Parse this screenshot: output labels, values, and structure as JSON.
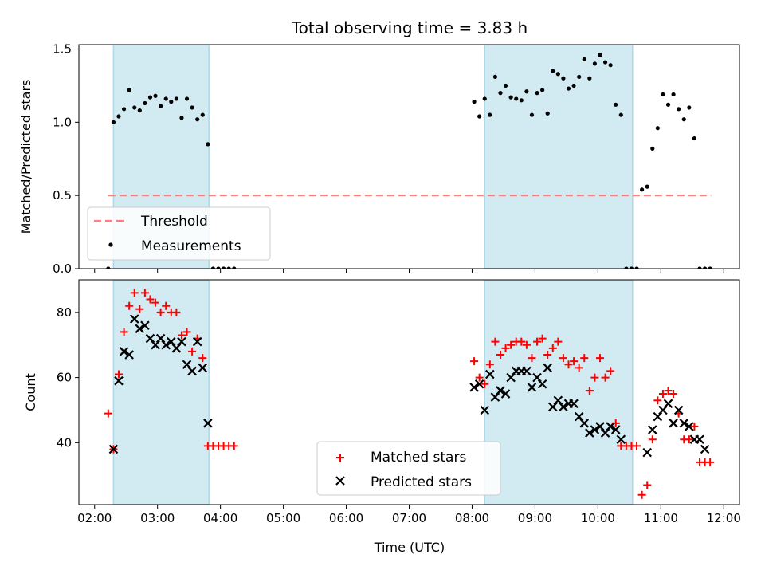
{
  "figure": {
    "title": "Total observing time = 3.83 h",
    "xlabel": "Time (UTC)",
    "x_ticks": [
      "02:00",
      "03:00",
      "04:00",
      "05:00",
      "06:00",
      "07:00",
      "08:00",
      "09:00",
      "10:00",
      "11:00",
      "12:00"
    ]
  },
  "colors": {
    "shade": "#add8e6",
    "threshold": "#ff7f7f",
    "matched": "#ff0000",
    "predicted": "#000000",
    "measurement": "#000000"
  },
  "chart_data": [
    {
      "type": "scatter",
      "ylabel": "Matched/Predicted stars",
      "y_ticks": [
        "0.0",
        "0.5",
        "1.0",
        "1.5"
      ],
      "xlim": [
        "01:45",
        "12:15"
      ],
      "ylim": [
        0,
        1.53
      ],
      "shaded_ranges": [
        [
          "02:18",
          "03:49"
        ],
        [
          "08:12",
          "10:33"
        ]
      ],
      "threshold": {
        "label": "Threshold",
        "y": 0.5,
        "x_range": [
          "02:13",
          "11:48"
        ]
      },
      "legend": {
        "position": "lower-left",
        "entries": [
          "Threshold",
          "Measurements"
        ]
      },
      "series": [
        {
          "name": "Measurements",
          "x": [
            "02:13",
            "02:18",
            "02:23",
            "02:28",
            "02:33",
            "02:38",
            "02:43",
            "02:48",
            "02:53",
            "02:58",
            "03:03",
            "03:08",
            "03:13",
            "03:18",
            "03:23",
            "03:28",
            "03:33",
            "03:38",
            "03:43",
            "03:48",
            "03:53",
            "03:58",
            "04:03",
            "04:08",
            "04:13",
            "08:02",
            "08:07",
            "08:12",
            "08:17",
            "08:22",
            "08:27",
            "08:32",
            "08:37",
            "08:42",
            "08:47",
            "08:52",
            "08:57",
            "09:02",
            "09:07",
            "09:12",
            "09:17",
            "09:22",
            "09:27",
            "09:32",
            "09:37",
            "09:42",
            "09:47",
            "09:52",
            "09:57",
            "10:02",
            "10:07",
            "10:12",
            "10:17",
            "10:22",
            "10:27",
            "10:32",
            "10:37",
            "10:42",
            "10:47",
            "10:52",
            "10:57",
            "11:02",
            "11:07",
            "11:12",
            "11:17",
            "11:22",
            "11:27",
            "11:32",
            "11:37",
            "11:42",
            "11:47"
          ],
          "y": [
            0.0,
            1.0,
            1.04,
            1.09,
            1.22,
            1.1,
            1.08,
            1.13,
            1.17,
            1.18,
            1.11,
            1.16,
            1.14,
            1.16,
            1.03,
            1.16,
            1.1,
            1.02,
            1.05,
            0.85,
            0.0,
            0.0,
            0.0,
            0.0,
            0.0,
            1.14,
            1.04,
            1.16,
            1.05,
            1.31,
            1.2,
            1.25,
            1.17,
            1.16,
            1.15,
            1.21,
            1.05,
            1.2,
            1.22,
            1.06,
            1.35,
            1.33,
            1.3,
            1.23,
            1.25,
            1.31,
            1.43,
            1.3,
            1.4,
            1.46,
            1.41,
            1.39,
            1.12,
            1.05,
            0.0,
            0.0,
            0.0,
            0.54,
            0.56,
            0.82,
            0.96,
            1.19,
            1.12,
            1.19,
            1.09,
            1.02,
            1.1,
            0.89,
            0.0,
            0.0,
            0.0
          ]
        }
      ]
    },
    {
      "type": "scatter",
      "ylabel": "Count",
      "y_ticks": [
        "40",
        "60",
        "80"
      ],
      "xlim": [
        "01:45",
        "12:15"
      ],
      "ylim": [
        21,
        90
      ],
      "shaded_ranges": [
        [
          "02:18",
          "03:49"
        ],
        [
          "08:12",
          "10:33"
        ]
      ],
      "legend": {
        "position": "lower-center",
        "entries": [
          "Matched stars",
          "Predicted stars"
        ]
      },
      "series": [
        {
          "name": "Matched stars",
          "marker": "plus",
          "x": [
            "02:13",
            "02:18",
            "02:23",
            "02:28",
            "02:33",
            "02:38",
            "02:43",
            "02:48",
            "02:53",
            "02:58",
            "03:03",
            "03:08",
            "03:13",
            "03:18",
            "03:23",
            "03:28",
            "03:33",
            "03:38",
            "03:43",
            "03:48",
            "03:53",
            "03:58",
            "04:03",
            "04:08",
            "04:13",
            "08:02",
            "08:07",
            "08:12",
            "08:17",
            "08:22",
            "08:27",
            "08:32",
            "08:37",
            "08:42",
            "08:47",
            "08:52",
            "08:57",
            "09:02",
            "09:07",
            "09:12",
            "09:17",
            "09:22",
            "09:27",
            "09:32",
            "09:37",
            "09:42",
            "09:47",
            "09:52",
            "09:57",
            "10:02",
            "10:07",
            "10:12",
            "10:17",
            "10:22",
            "10:27",
            "10:32",
            "10:37",
            "10:42",
            "10:47",
            "10:52",
            "10:57",
            "11:02",
            "11:07",
            "11:12",
            "11:17",
            "11:22",
            "11:27",
            "11:32",
            "11:37",
            "11:42",
            "11:47"
          ],
          "y": [
            49,
            38,
            61,
            74,
            82,
            86,
            81,
            86,
            84,
            83,
            80,
            82,
            80,
            80,
            73,
            74,
            68,
            72,
            66,
            39,
            39,
            39,
            39,
            39,
            39,
            65,
            60,
            58,
            64,
            71,
            67,
            69,
            70,
            71,
            71,
            70,
            66,
            71,
            72,
            67,
            69,
            71,
            66,
            64,
            65,
            63,
            66,
            56,
            60,
            66,
            60,
            62,
            46,
            39,
            39,
            39,
            39,
            24,
            27,
            41,
            53,
            55,
            56,
            55,
            49,
            41,
            41,
            45,
            34,
            34,
            34
          ]
        },
        {
          "name": "Predicted stars",
          "marker": "x",
          "x": [
            "02:18",
            "02:23",
            "02:28",
            "02:33",
            "02:38",
            "02:43",
            "02:48",
            "02:53",
            "02:58",
            "03:03",
            "03:08",
            "03:13",
            "03:18",
            "03:23",
            "03:28",
            "03:33",
            "03:38",
            "03:43",
            "03:48",
            "08:02",
            "08:07",
            "08:12",
            "08:17",
            "08:22",
            "08:27",
            "08:32",
            "08:37",
            "08:42",
            "08:47",
            "08:52",
            "08:57",
            "09:02",
            "09:07",
            "09:12",
            "09:17",
            "09:22",
            "09:27",
            "09:32",
            "09:37",
            "09:42",
            "09:47",
            "09:52",
            "09:57",
            "10:02",
            "10:07",
            "10:12",
            "10:17",
            "10:22",
            "10:47",
            "10:52",
            "10:57",
            "11:02",
            "11:07",
            "11:12",
            "11:17",
            "11:22",
            "11:27",
            "11:32",
            "11:37",
            "11:42"
          ],
          "y": [
            38,
            59,
            68,
            67,
            78,
            75,
            76,
            72,
            70,
            72,
            70,
            71,
            69,
            71,
            64,
            62,
            71,
            63,
            46,
            57,
            58,
            50,
            61,
            54,
            56,
            55,
            60,
            62,
            62,
            62,
            57,
            60,
            58,
            63,
            51,
            53,
            51,
            52,
            52,
            48,
            46,
            43,
            44,
            45,
            43,
            45,
            44,
            41,
            37,
            44,
            48,
            50,
            52,
            46,
            50,
            46,
            45,
            41,
            41,
            38
          ]
        }
      ]
    }
  ]
}
